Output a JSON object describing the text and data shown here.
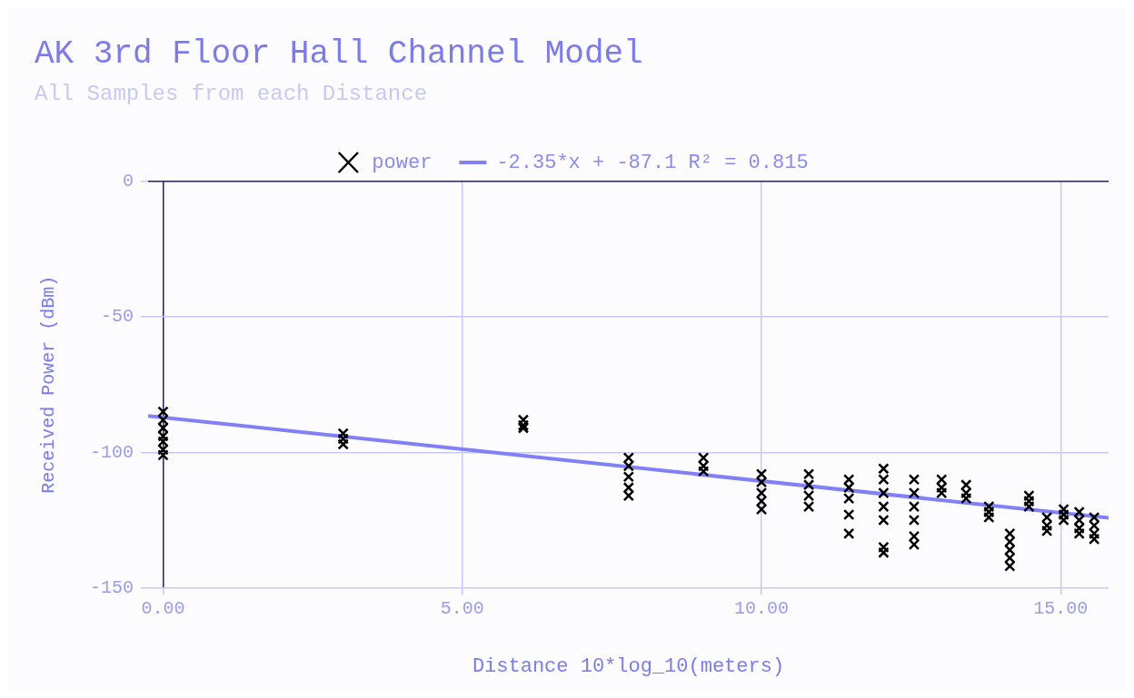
{
  "chart_data": {
    "type": "scatter",
    "title": "AK 3rd Floor Hall Channel Model",
    "subtitle": "All Samples from each Distance",
    "xlabel": "Distance 10*log_10(meters)",
    "ylabel": "Received Power (dBm)",
    "xlim": [
      -0.25,
      15.8
    ],
    "xticks": [
      {
        "value": 0,
        "label": "0.00"
      },
      {
        "value": 5,
        "label": "5.00"
      },
      {
        "value": 10,
        "label": "10.00"
      },
      {
        "value": 15,
        "label": "15.00"
      }
    ],
    "ylim": [
      -150,
      0
    ],
    "yticks": [
      -150,
      -100,
      -50,
      0
    ],
    "grid": true,
    "legend": "top",
    "series": [
      {
        "name": "power",
        "color": "#000000",
        "marker": "cross",
        "x": [
          0,
          0,
          0,
          0,
          0,
          0,
          0,
          3.01,
          3.01,
          3.01,
          6.02,
          6.02,
          6.02,
          7.78,
          7.78,
          7.78,
          7.78,
          7.78,
          9.03,
          9.03,
          9.03,
          10,
          10,
          10,
          10,
          10,
          10.79,
          10.79,
          10.79,
          10.79,
          11.46,
          11.46,
          11.46,
          11.46,
          11.46,
          12.04,
          12.04,
          12.04,
          12.04,
          12.04,
          12.04,
          12.04,
          12.55,
          12.55,
          12.55,
          12.55,
          12.55,
          12.55,
          13.01,
          13.01,
          13.01,
          13.42,
          13.42,
          13.42,
          13.8,
          13.8,
          13.8,
          14.15,
          14.15,
          14.15,
          14.15,
          14.15,
          14.47,
          14.47,
          14.47,
          14.77,
          14.77,
          14.77,
          15.05,
          15.05,
          15.05,
          15.31,
          15.31,
          15.31,
          15.31,
          15.56,
          15.56,
          15.56,
          15.56
        ],
        "values": [
          -85,
          -88,
          -91,
          -94,
          -96,
          -99,
          -101,
          -93,
          -95,
          -97,
          -88,
          -90,
          -91,
          -102,
          -105,
          -109,
          -113,
          -116,
          -102,
          -105,
          -107,
          -108,
          -111,
          -115,
          -118,
          -121,
          -108,
          -112,
          -116,
          -120,
          -110,
          -113,
          -117,
          -123,
          -130,
          -106,
          -110,
          -115,
          -120,
          -125,
          -135,
          -137,
          -110,
          -115,
          -120,
          -125,
          -131,
          -134,
          -110,
          -113,
          -115,
          -112,
          -115,
          -117,
          -120,
          -122,
          -124,
          -130,
          -133,
          -136,
          -139,
          -142,
          -116,
          -118,
          -120,
          -124,
          -127,
          -129,
          -121,
          -123,
          -125,
          -122,
          -125,
          -128,
          -130,
          -124,
          -127,
          -130,
          -132
        ]
      },
      {
        "name": "-2.35*x + -87.1 R² = 0.815",
        "type": "line",
        "marker": "none",
        "color": "#8080f8",
        "x": [
          -0.25,
          15.8
        ],
        "values": [
          -86.5,
          -124.2
        ]
      }
    ]
  }
}
